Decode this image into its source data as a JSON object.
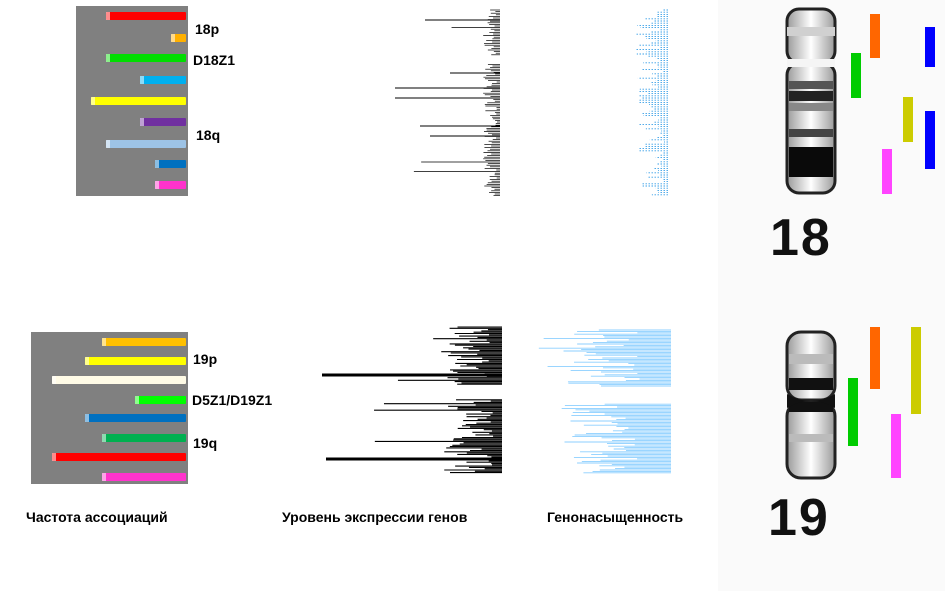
{
  "chromosome_18": {
    "labels": [
      "18p",
      "D18Z1",
      "18q"
    ],
    "number": "18",
    "bars": [
      {
        "color": "#ff0000",
        "fraction": 0.74
      },
      {
        "color": "#ffb000",
        "fraction": 0.14
      },
      {
        "color": "#00dd00",
        "fraction": 0.74
      },
      {
        "color": "#00b0f0",
        "fraction": 0.43
      },
      {
        "color": "#ffff00",
        "fraction": 0.88
      },
      {
        "color": "#7030a0",
        "fraction": 0.43
      },
      {
        "color": "#9dc3e6",
        "fraction": 0.74
      },
      {
        "color": "#0070c0",
        "fraction": 0.29
      },
      {
        "color": "#ff33cc",
        "fraction": 0.29
      }
    ],
    "ideogram_bars": [
      {
        "color": "#ff6600"
      },
      {
        "color": "#00cc00"
      },
      {
        "color": "#0000ff"
      },
      {
        "color": "#cccc00"
      },
      {
        "color": "#0000ff"
      },
      {
        "color": "#ff44ff"
      }
    ]
  },
  "chromosome_19": {
    "labels": [
      "19p",
      "D5Z1/D19Z1",
      "19q"
    ],
    "number": "19",
    "bars": [
      {
        "color": "#ffc000",
        "fraction": 0.56
      },
      {
        "color": "#ffff00",
        "fraction": 0.67
      },
      {
        "color": "#fffbe6",
        "fraction": 0.89
      },
      {
        "color": "#00ff00",
        "fraction": 0.34
      },
      {
        "color": "#0070c0",
        "fraction": 0.67
      },
      {
        "color": "#00b050",
        "fraction": 0.56
      },
      {
        "color": "#ff0000",
        "fraction": 0.89
      },
      {
        "color": "#ff33cc",
        "fraction": 0.56
      }
    ],
    "ideogram_bars": [
      {
        "color": "#ff6600"
      },
      {
        "color": "#cccc00"
      },
      {
        "color": "#00cc00"
      },
      {
        "color": "#ff44ff"
      }
    ]
  },
  "captions": {
    "association_frequency": "Частота ассоциаций",
    "gene_expression": "Уровень экспрессии генов",
    "gene_density": "Генонасыщенность"
  }
}
